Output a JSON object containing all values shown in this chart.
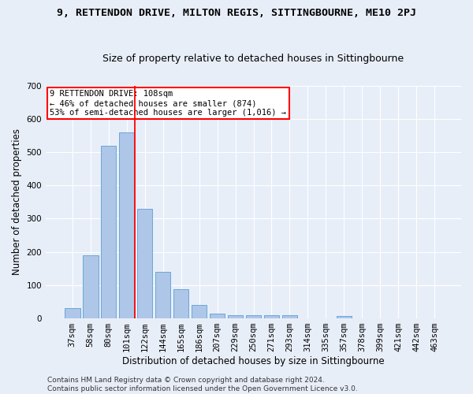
{
  "title": "9, RETTENDON DRIVE, MILTON REGIS, SITTINGBOURNE, ME10 2PJ",
  "subtitle": "Size of property relative to detached houses in Sittingbourne",
  "xlabel": "Distribution of detached houses by size in Sittingbourne",
  "ylabel": "Number of detached properties",
  "footnote1": "Contains HM Land Registry data © Crown copyright and database right 2024.",
  "footnote2": "Contains public sector information licensed under the Open Government Licence v3.0.",
  "categories": [
    "37sqm",
    "58sqm",
    "80sqm",
    "101sqm",
    "122sqm",
    "144sqm",
    "165sqm",
    "186sqm",
    "207sqm",
    "229sqm",
    "250sqm",
    "271sqm",
    "293sqm",
    "314sqm",
    "335sqm",
    "357sqm",
    "378sqm",
    "399sqm",
    "421sqm",
    "442sqm",
    "463sqm"
  ],
  "values": [
    30,
    190,
    520,
    560,
    330,
    140,
    87,
    40,
    14,
    10,
    9,
    9,
    9,
    0,
    0,
    8,
    0,
    0,
    0,
    0,
    0
  ],
  "bar_color": "#aec6e8",
  "bar_edge_color": "#5a9fd4",
  "vline_x": 3.43,
  "annotation_text": "9 RETTENDON DRIVE: 108sqm\n← 46% of detached houses are smaller (874)\n53% of semi-detached houses are larger (1,016) →",
  "annotation_box_color": "white",
  "annotation_box_edge_color": "red",
  "vline_color": "red",
  "ylim": [
    0,
    700
  ],
  "yticks": [
    0,
    100,
    200,
    300,
    400,
    500,
    600,
    700
  ],
  "background_color": "#e8eef8",
  "grid_color": "white",
  "title_fontsize": 9.5,
  "subtitle_fontsize": 9,
  "xlabel_fontsize": 8.5,
  "ylabel_fontsize": 8.5,
  "tick_fontsize": 7.5,
  "annotation_fontsize": 7.5
}
